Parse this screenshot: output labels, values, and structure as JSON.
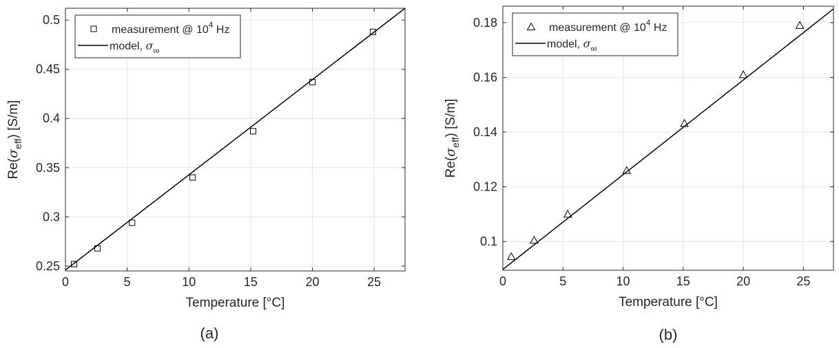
{
  "chart_data": [
    {
      "type": "scatter",
      "caption": "(a)",
      "xlabel": "Temperature [°C]",
      "ylabel_prefix": "Re(",
      "ylabel_symbol": "σ",
      "ylabel_sub": "eff",
      "ylabel_suffix": ") [S/m]",
      "xlim": [
        0,
        27.5
      ],
      "ylim": [
        0.245,
        0.512
      ],
      "xticks": [
        0,
        5,
        10,
        15,
        20,
        25
      ],
      "yticks": [
        0.25,
        0.3,
        0.35,
        0.4,
        0.45,
        0.5
      ],
      "ytick_labels": [
        "0.25",
        "0.3",
        "0.35",
        "0.4",
        "0.45",
        "0.5"
      ],
      "grid": true,
      "legend_placement": "top-left",
      "marker": "square",
      "series": [
        {
          "name": "measurement @ 10^4 Hz",
          "x": [
            0.7,
            2.6,
            5.4,
            10.3,
            15.2,
            20.0,
            24.9
          ],
          "y": [
            0.252,
            0.268,
            0.294,
            0.34,
            0.387,
            0.437,
            0.488
          ]
        },
        {
          "name": "model, σ∞",
          "kind": "line",
          "x": [
            0,
            27.5
          ],
          "y": [
            0.246,
            0.512
          ]
        }
      ],
      "legend": {
        "measurement_text": "measurement @ 10",
        "measurement_exp": "4",
        "measurement_unit": " Hz",
        "model_text": "model, ",
        "model_symbol": "σ",
        "model_sub": "∞"
      }
    },
    {
      "type": "scatter",
      "caption": "(b)",
      "xlabel": "Temperature [°C]",
      "ylabel_prefix": "Re(",
      "ylabel_symbol": "σ",
      "ylabel_sub": "eff",
      "ylabel_suffix": ") [S/m]",
      "xlim": [
        0,
        27.5
      ],
      "ylim": [
        0.0895,
        0.186
      ],
      "xticks": [
        0,
        5,
        10,
        15,
        20,
        25
      ],
      "yticks": [
        0.1,
        0.12,
        0.14,
        0.16,
        0.18
      ],
      "ytick_labels": [
        "0.1",
        "0.12",
        "0.14",
        "0.16",
        "0.18"
      ],
      "grid": true,
      "legend_placement": "top-left",
      "marker": "triangle",
      "series": [
        {
          "name": "measurement @ 10^4 Hz",
          "x": [
            0.7,
            2.6,
            5.4,
            10.3,
            15.1,
            20.0,
            24.7
          ],
          "y": [
            0.0945,
            0.1005,
            0.11,
            0.126,
            0.1432,
            0.161,
            0.179
          ]
        },
        {
          "name": "model, σ∞",
          "kind": "line",
          "x": [
            0,
            27.5
          ],
          "y": [
            0.0898,
            0.185
          ]
        }
      ],
      "legend": {
        "measurement_text": "measurement @ 10",
        "measurement_exp": "4",
        "measurement_unit": " Hz",
        "model_text": "model, ",
        "model_symbol": "σ",
        "model_sub": "∞"
      }
    }
  ]
}
